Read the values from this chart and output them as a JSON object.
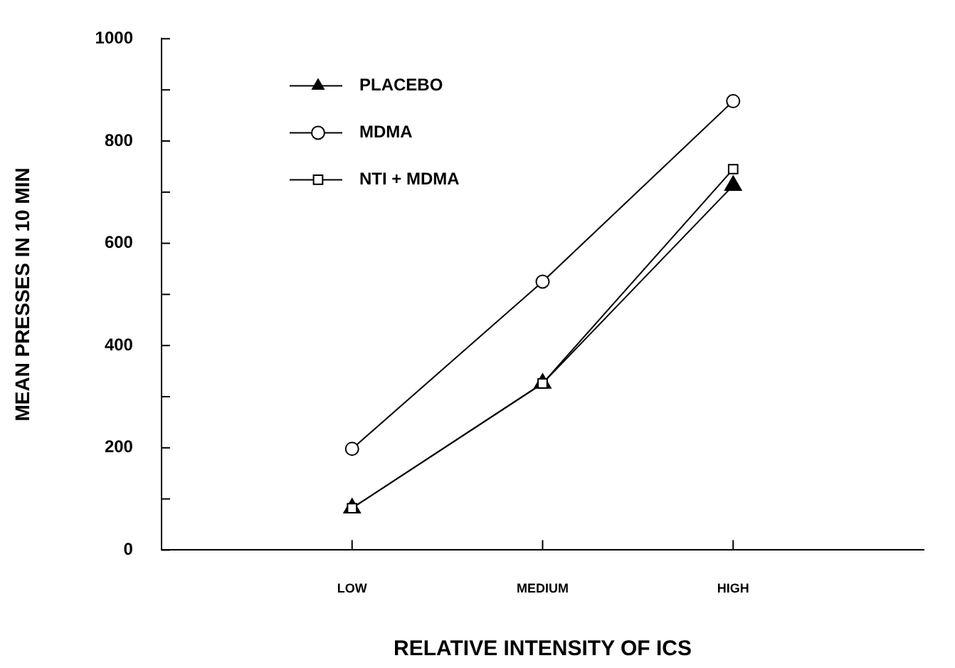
{
  "chart_data": {
    "type": "line",
    "xlabel": "RELATIVE INTENSITY OF ICS",
    "ylabel": "MEAN PRESSES IN 10 MIN",
    "categories": [
      null,
      "LOW",
      "MEDIUM",
      "HIGH",
      null
    ],
    "series": [
      {
        "name": "PLACEBO",
        "color": "#000000",
        "marker": "triangle",
        "values": [
          null,
          82,
          326,
          713,
          null
        ]
      },
      {
        "name": "MDMA",
        "color": "#000000",
        "marker": "circle",
        "values": [
          null,
          198,
          525,
          878,
          null
        ]
      },
      {
        "name": "NTI + MDMA",
        "color": "#000000",
        "marker": "square",
        "values": [
          null,
          82,
          326,
          745,
          null
        ]
      }
    ],
    "ylim": [
      0,
      1000
    ],
    "yticks": [
      0,
      {
        "value": 100,
        "label": null
      },
      200,
      {
        "value": 300,
        "label": null
      },
      400,
      {
        "value": 500,
        "label": null
      },
      600,
      {
        "value": 700,
        "label": null
      },
      800,
      {
        "value": 900,
        "label": null
      },
      1000
    ],
    "grid": false,
    "legend": "top left",
    "line_style": "solid"
  }
}
